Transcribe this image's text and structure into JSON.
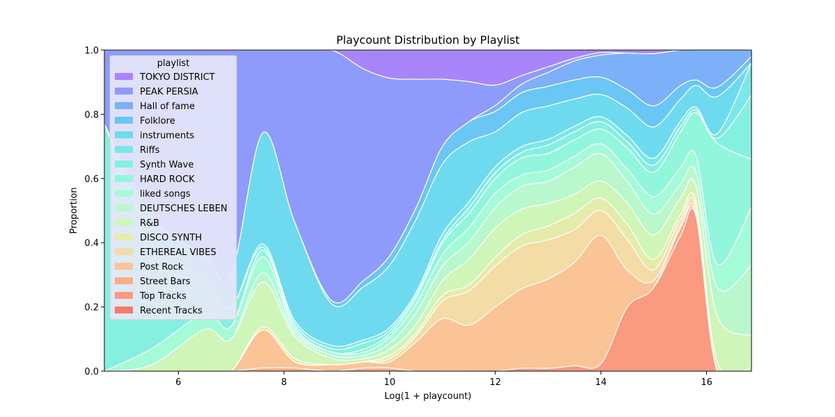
{
  "chart_data": {
    "type": "area",
    "title": "Playcount Distribution by Playlist",
    "xlabel": "Log(1 + playcount)",
    "ylabel": "Proportion",
    "xlim": [
      4.6,
      16.85
    ],
    "ylim": [
      0,
      1
    ],
    "x_ticks": [
      6,
      8,
      10,
      12,
      14,
      16
    ],
    "y_ticks": [
      0.0,
      0.2,
      0.4,
      0.6,
      0.8,
      1.0
    ],
    "x_tick_labels": [
      "6",
      "8",
      "10",
      "12",
      "14",
      "16"
    ],
    "y_tick_labels": [
      "0.0",
      "0.2",
      "0.4",
      "0.6",
      "0.8",
      "1.0"
    ],
    "legend_title": "playlist",
    "legend_position": "upper-left",
    "x": [
      4.6,
      5.5,
      6.5,
      7.0,
      7.6,
      8.2,
      8.9,
      9.5,
      10.0,
      10.5,
      11.0,
      11.5,
      12.0,
      12.5,
      13.0,
      13.5,
      14.0,
      14.5,
      15.0,
      15.5,
      15.8,
      16.2,
      16.85
    ],
    "series": [
      {
        "name": "Recent Tracks",
        "color": "#f47a6a",
        "values": [
          0,
          0,
          0,
          0,
          0,
          0,
          0,
          0,
          0,
          0,
          0,
          0,
          0,
          0,
          0,
          0,
          0,
          0,
          0,
          0,
          0,
          0,
          0
        ]
      },
      {
        "name": "Top Tracks",
        "color": "#fa9a80",
        "values": [
          0,
          0,
          0,
          0,
          0,
          0,
          0,
          0,
          0,
          0,
          0,
          0,
          0,
          0.01,
          0.01,
          0.02,
          0.03,
          0.21,
          0.24,
          0.49,
          0.57,
          0.0,
          0
        ]
      },
      {
        "name": "Street Bars",
        "color": "#faae88",
        "values": [
          0,
          0,
          0,
          0,
          0.01,
          0.01,
          0,
          0.01,
          0.01,
          0,
          0,
          0,
          0,
          0,
          0,
          0,
          0,
          0,
          0,
          0.03,
          0,
          0,
          0
        ]
      },
      {
        "name": "Post Rock",
        "color": "#fbc496",
        "values": [
          0,
          0,
          0,
          0,
          0.12,
          0.02,
          0.02,
          0.02,
          0.02,
          0.1,
          0.18,
          0.16,
          0.22,
          0.28,
          0.32,
          0.38,
          0.52,
          0.12,
          0.02,
          0.01,
          0.01,
          0,
          0
        ]
      },
      {
        "name": "ETHEREAL VIBES",
        "color": "#f3dca5",
        "values": [
          0,
          0,
          0,
          0,
          0,
          0,
          0,
          0,
          0.01,
          0.02,
          0.06,
          0.12,
          0.14,
          0.15,
          0.14,
          0.12,
          0.1,
          0.1,
          0.03,
          0.02,
          0.02,
          0,
          0
        ]
      },
      {
        "name": "DISCO SYNTH",
        "color": "#e5ebaa",
        "values": [
          0,
          0,
          0,
          0,
          0.01,
          0.01,
          0,
          0,
          0.01,
          0.01,
          0.02,
          0.02,
          0.03,
          0.04,
          0.05,
          0.06,
          0.05,
          0.05,
          0.03,
          0.02,
          0.02,
          0.02,
          0.01
        ]
      },
      {
        "name": "R&B",
        "color": "#d0f5b8",
        "values": [
          0,
          0.02,
          0.13,
          0.1,
          0.14,
          0.07,
          0.02,
          0.01,
          0.02,
          0.03,
          0.05,
          0.09,
          0.1,
          0.09,
          0.08,
          0.07,
          0.07,
          0.07,
          0.07,
          0.06,
          0.06,
          0.1,
          0.1
        ]
      },
      {
        "name": "DEUTSCHES LEBEN",
        "color": "#b8f8cc",
        "values": [
          0,
          0,
          0,
          0,
          0.03,
          0.01,
          0.01,
          0.01,
          0.02,
          0.04,
          0.05,
          0.06,
          0.07,
          0.08,
          0.08,
          0.1,
          0.11,
          0.07,
          0.06,
          0.05,
          0.05,
          0.06,
          0.22
        ]
      },
      {
        "name": "liked songs",
        "color": "#a4fbd8",
        "values": [
          0,
          0.05,
          0.05,
          0.04,
          0.05,
          0.01,
          0.01,
          0.01,
          0.02,
          0.03,
          0.04,
          0.05,
          0.05,
          0.04,
          0.04,
          0.04,
          0.04,
          0.04,
          0.05,
          0.06,
          0.06,
          0.05,
          0.18
        ]
      },
      {
        "name": "HARD ROCK",
        "color": "#92f6dc",
        "values": [
          0,
          0,
          0,
          0,
          0.02,
          0.01,
          0,
          0.01,
          0.01,
          0.02,
          0.04,
          0.05,
          0.05,
          0.06,
          0.06,
          0.06,
          0.06,
          0.07,
          0.07,
          0.13,
          0.16,
          0.26,
          0.15
        ]
      },
      {
        "name": "Synth Wave",
        "color": "#86f0e0",
        "values": [
          0.77,
          0.35,
          0.1,
          0.06,
          0.01,
          0.01,
          0.01,
          0.02,
          0.01,
          0.01,
          0.01,
          0.02,
          0.02,
          0.02,
          0.03,
          0.03,
          0.03,
          0.02,
          0.02,
          0.02,
          0.01,
          0.01,
          0.2
        ]
      },
      {
        "name": "Riffs",
        "color": "#7ae7e8",
        "values": [
          0,
          0,
          0,
          0,
          0.01,
          0.01,
          0.01,
          0.01,
          0.01,
          0.01,
          0.02,
          0.02,
          0.02,
          0.02,
          0.02,
          0.02,
          0.02,
          0.02,
          0.02,
          0.02,
          0.01,
          0.01,
          0.1
        ]
      },
      {
        "name": "instruments",
        "color": "#6edaf0",
        "values": [
          0,
          0.06,
          0.08,
          0.1,
          0.35,
          0.31,
          0.13,
          0.17,
          0.2,
          0.25,
          0.24,
          0.21,
          0.12,
          0.12,
          0.12,
          0.1,
          0.09,
          0.09,
          0.09,
          0.08,
          0.08,
          0.08,
          0
        ]
      },
      {
        "name": "Folklore",
        "color": "#6ac6f4",
        "values": [
          0,
          0,
          0,
          0,
          0,
          0,
          0.01,
          0.02,
          0.03,
          0.04,
          0.06,
          0.07,
          0.07,
          0.07,
          0.07,
          0.07,
          0.07,
          0.06,
          0.06,
          0.05,
          0.02,
          0.02,
          0.02
        ]
      },
      {
        "name": "Hall of fame",
        "color": "#7cb0f8",
        "values": [
          0,
          0,
          0,
          0,
          0,
          0,
          0,
          0,
          0,
          0,
          0,
          0,
          0.02,
          0.03,
          0.05,
          0.07,
          0.09,
          0.12,
          0.15,
          0.13,
          0.11,
          0.08,
          0.02
        ]
      },
      {
        "name": "PEAK PERSIA",
        "color": "#8f9bfa",
        "values": [
          0.23,
          0.52,
          0.64,
          0.7,
          0.26,
          0.54,
          0.78,
          0.68,
          0.57,
          0.44,
          0.23,
          0.14,
          0.07,
          0.03,
          0.02,
          0.01,
          0.01,
          0,
          0,
          0,
          0,
          0,
          0
        ]
      },
      {
        "name": "TOKYO DISTRICT",
        "color": "#a985fc",
        "values": [
          0,
          0,
          0,
          0,
          0,
          0,
          0,
          0.06,
          0.09,
          0.1,
          0.1,
          0.11,
          0.12,
          0.09,
          0.06,
          0.03,
          0.01,
          0.01,
          0.01,
          0,
          0,
          0,
          0
        ]
      }
    ]
  }
}
